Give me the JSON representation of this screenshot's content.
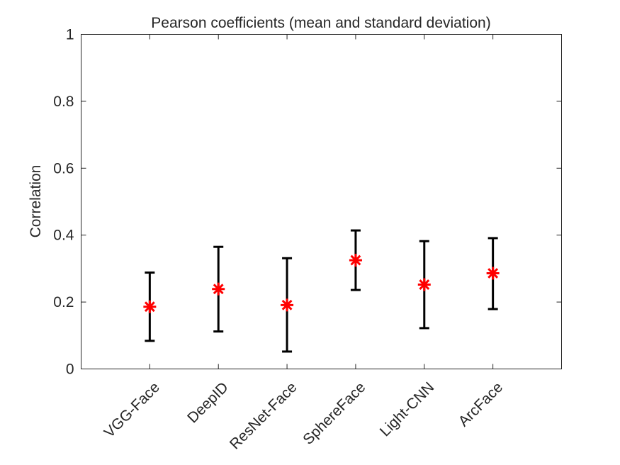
{
  "chart_data": {
    "type": "errorbar",
    "title": "Pearson coefficients (mean and standard deviation)",
    "xlabel": "",
    "ylabel": "Correlation",
    "ylim": [
      0,
      1
    ],
    "yticks": [
      "0",
      "0.2",
      "0.4",
      "0.6",
      "0.8",
      "1"
    ],
    "ytick_values": [
      0,
      0.2,
      0.4,
      0.6,
      0.8,
      1
    ],
    "xlim": [
      0,
      7
    ],
    "categories": [
      "VGG-Face",
      "DeepID",
      "ResNet-Face",
      "SphereFace",
      "Light-CNN",
      "ArcFace"
    ],
    "mean": [
      0.186,
      0.239,
      0.191,
      0.325,
      0.252,
      0.286
    ],
    "lower": [
      0.084,
      0.112,
      0.052,
      0.236,
      0.122,
      0.179
    ],
    "upper": [
      0.288,
      0.365,
      0.331,
      0.414,
      0.382,
      0.391
    ],
    "grid": false,
    "marker_color": "#ff0000",
    "errorbar_color": "#000000",
    "axis_color": "#262626"
  }
}
